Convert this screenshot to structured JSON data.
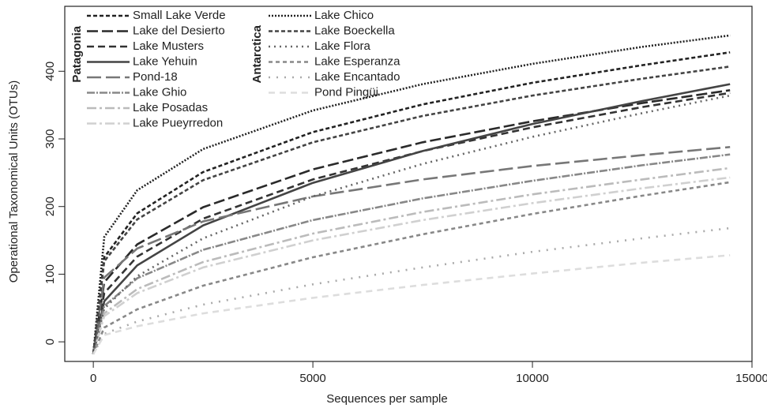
{
  "chart_data": {
    "type": "line",
    "x_label": "Sequences per sample",
    "y_label": "Operational Taxonomical Units (OTUs)",
    "xlim": [
      -650,
      15000
    ],
    "ylim": [
      -29,
      496
    ],
    "xticks": [
      0,
      5000,
      10000,
      15000
    ],
    "yticks": [
      0,
      100,
      200,
      300,
      400
    ],
    "x": [
      0,
      250,
      1000,
      2500,
      5000,
      7500,
      10000,
      12500,
      14500
    ],
    "series": [
      {
        "name": "Small Lake Verde",
        "group": "Patagonia",
        "color": "#222222",
        "dash": "5,3",
        "values": [
          -18,
          125,
          190,
          251,
          310,
          351,
          383,
          409,
          428
        ]
      },
      {
        "name": "Lake del Desierto",
        "group": "Patagonia",
        "color": "#2a2a2a",
        "dash": "14,5",
        "values": [
          -18,
          88,
          144,
          199,
          255,
          295,
          326,
          353,
          372
        ]
      },
      {
        "name": "Lake Musters",
        "group": "Patagonia",
        "color": "#333333",
        "dash": "9,5",
        "values": [
          -18,
          72,
          126,
          182,
          240,
          282,
          317,
          347,
          368
        ]
      },
      {
        "name": "Lake Yehuin",
        "group": "Patagonia",
        "color": "#444444",
        "dash": "none",
        "values": [
          -18,
          60,
          113,
          172,
          235,
          282,
          322,
          356,
          381
        ]
      },
      {
        "name": "Pond-18",
        "group": "Patagonia",
        "color": "#777777",
        "dash": "18,6",
        "values": [
          -18,
          95,
          138,
          178,
          215,
          240,
          260,
          276,
          288
        ]
      },
      {
        "name": "Lake Ghio",
        "group": "Patagonia",
        "color": "#888888",
        "dash": "10,2,2,2",
        "values": [
          -18,
          53,
          94,
          136,
          180,
          212,
          238,
          261,
          277
        ]
      },
      {
        "name": "Lake Posadas",
        "group": "Patagonia",
        "color": "#bbbbbb",
        "dash": "12,4,3,4",
        "values": [
          -18,
          42,
          78,
          118,
          160,
          192,
          218,
          240,
          257
        ]
      },
      {
        "name": "Lake Pueyrredon",
        "group": "Patagonia",
        "color": "#d0d0d0",
        "dash": "12,4,3,4",
        "values": [
          -18,
          38,
          72,
          110,
          150,
          180,
          205,
          227,
          243
        ]
      },
      {
        "name": "Lake Chico",
        "group": "Antarctica",
        "color": "#222222",
        "dash": "2,2",
        "values": [
          -18,
          155,
          224,
          285,
          342,
          381,
          411,
          436,
          453
        ]
      },
      {
        "name": "Lake Boeckella",
        "group": "Antarctica",
        "color": "#444444",
        "dash": "5,3",
        "values": [
          -18,
          119,
          181,
          239,
          295,
          334,
          364,
          389,
          407
        ]
      },
      {
        "name": "Lake Flora",
        "group": "Antarctica",
        "color": "#666666",
        "dash": "2,5",
        "values": [
          -18,
          49,
          97,
          153,
          215,
          263,
          303,
          338,
          364
        ]
      },
      {
        "name": "Lake Esperanza",
        "group": "Antarctica",
        "color": "#888888",
        "dash": "5,4",
        "values": [
          -18,
          21,
          48,
          83,
          125,
          159,
          189,
          216,
          236
        ]
      },
      {
        "name": "Lake Encantado",
        "group": "Antarctica",
        "color": "#aaaaaa",
        "dash": "2,8",
        "values": [
          -18,
          12,
          30,
          55,
          85,
          110,
          133,
          153,
          168
        ]
      },
      {
        "name": "Pond Pingüi",
        "group": "Antarctica",
        "color": "#dddddd",
        "dash": "8,6",
        "values": [
          -18,
          10,
          23,
          42,
          65,
          84,
          101,
          117,
          128
        ]
      }
    ]
  }
}
